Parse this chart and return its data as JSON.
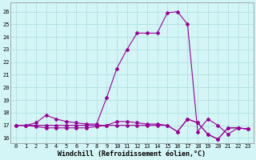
{
  "xlabel": "Windchill (Refroidissement éolien,°C)",
  "bg_color": "#d4f5f5",
  "grid_color": "#aadddd",
  "line_color": "#990099",
  "x_ticks": [
    0,
    1,
    2,
    3,
    4,
    5,
    6,
    7,
    8,
    9,
    10,
    11,
    12,
    13,
    14,
    15,
    16,
    17,
    18,
    19,
    20,
    21,
    22,
    23
  ],
  "y_ticks": [
    16,
    17,
    18,
    19,
    20,
    21,
    22,
    23,
    24,
    25,
    26
  ],
  "ylim": [
    15.6,
    26.7
  ],
  "xlim": [
    -0.5,
    23.5
  ],
  "main_x": [
    0,
    1,
    2,
    3,
    4,
    5,
    6,
    7,
    8,
    9,
    10,
    11,
    12,
    13,
    14,
    15,
    16,
    17,
    18,
    19,
    20,
    21,
    22,
    23
  ],
  "main_y": [
    17.0,
    17.0,
    17.2,
    17.8,
    17.5,
    17.3,
    17.2,
    17.1,
    17.1,
    19.2,
    21.5,
    23.0,
    24.3,
    24.3,
    24.3,
    25.9,
    26.0,
    25.0,
    16.5,
    17.5,
    17.0,
    16.3,
    16.8,
    16.7
  ],
  "line2_x": [
    0,
    1,
    2,
    3,
    4,
    5,
    6,
    7,
    8,
    9,
    10,
    11,
    12,
    13,
    14,
    15,
    16,
    17,
    18,
    19,
    20,
    21,
    22,
    23
  ],
  "line2_y": [
    17.0,
    17.0,
    17.0,
    17.0,
    17.0,
    17.0,
    17.0,
    17.0,
    17.0,
    17.0,
    17.3,
    17.3,
    17.2,
    17.1,
    17.1,
    17.0,
    16.5,
    17.5,
    17.2,
    16.3,
    15.9,
    16.8,
    16.8,
    16.7
  ],
  "line3_x": [
    0,
    1,
    2,
    3,
    4,
    5,
    6,
    7,
    8,
    9,
    10,
    11,
    12,
    13,
    14,
    15,
    16,
    17,
    18,
    19,
    20,
    21,
    22,
    23
  ],
  "line3_y": [
    17.0,
    17.0,
    16.9,
    16.8,
    16.8,
    16.8,
    16.8,
    16.8,
    16.9,
    17.0,
    17.0,
    17.0,
    17.0,
    17.0,
    17.0,
    17.0,
    16.5,
    17.5,
    17.2,
    16.3,
    15.9,
    16.8,
    16.8,
    16.7
  ],
  "line4_x": [
    8,
    9
  ],
  "line4_y": [
    17.0,
    19.2
  ],
  "marker": "D",
  "markersize": 2.0,
  "linewidth": 0.8,
  "tick_fontsize": 5.0,
  "xlabel_fontsize": 6.0
}
